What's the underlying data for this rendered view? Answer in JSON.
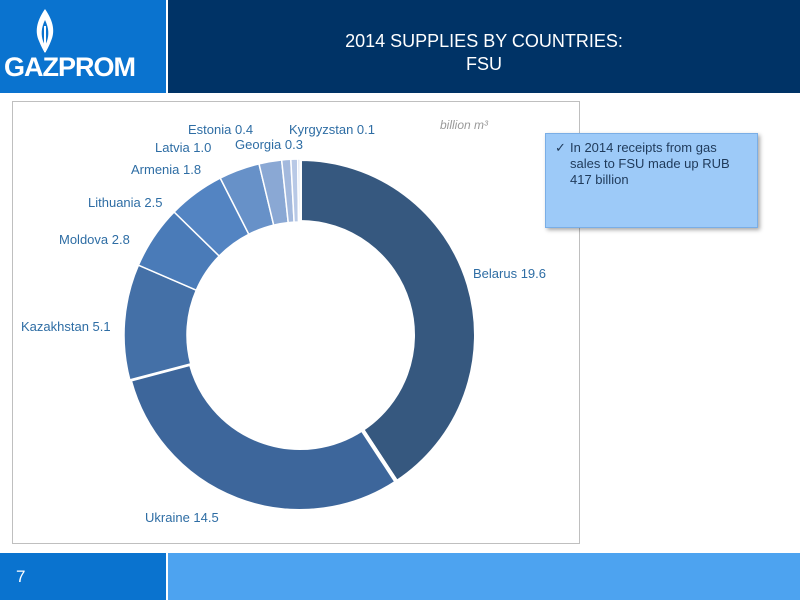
{
  "header": {
    "logo_text": "GAZPROM",
    "title_line1": "2014 SUPPLIES BY COUNTRIES:",
    "title_line2": "FSU"
  },
  "note": {
    "check": "✓",
    "text": "In 2014 receipts from gas sales to FSU made up RUB 417 billion"
  },
  "footer": {
    "page_number": "7"
  },
  "colors": {
    "header_bg": "#003366",
    "logo_bg": "#0a73cf",
    "footer_bg": "#4da3f0",
    "label_color": "#2e6da4"
  },
  "chart_data": {
    "type": "pie",
    "style": "donut",
    "unit_label": "billion m³",
    "slices": [
      {
        "label": "Belarus",
        "value": 19.6,
        "display": "Belarus 19.6",
        "color": "#36587f"
      },
      {
        "label": "Ukraine",
        "value": 14.5,
        "display": "Ukraine 14.5",
        "color": "#3d669b"
      },
      {
        "label": "Kazakhstan",
        "value": 5.1,
        "display": "Kazakhstan 5.1",
        "color": "#4470a7"
      },
      {
        "label": "Moldova",
        "value": 2.8,
        "display": "Moldova 2.8",
        "color": "#4a7bb8"
      },
      {
        "label": "Lithuania",
        "value": 2.5,
        "display": "Lithuania 2.5",
        "color": "#5384c2"
      },
      {
        "label": "Armenia",
        "value": 1.8,
        "display": "Armenia 1.8",
        "color": "#6791c8"
      },
      {
        "label": "Latvia",
        "value": 1.0,
        "display": "Latvia 1.0",
        "color": "#8aa8d4"
      },
      {
        "label": "Estonia",
        "value": 0.4,
        "display": "Estonia 0.4",
        "color": "#a3b9dd"
      },
      {
        "label": "Georgia",
        "value": 0.3,
        "display": "Georgia 0.3",
        "color": "#b8c9e6"
      },
      {
        "label": "Kyrgyzstan",
        "value": 0.1,
        "display": "Kyrgyzstan 0.1",
        "color": "#cdd9ee"
      }
    ]
  }
}
